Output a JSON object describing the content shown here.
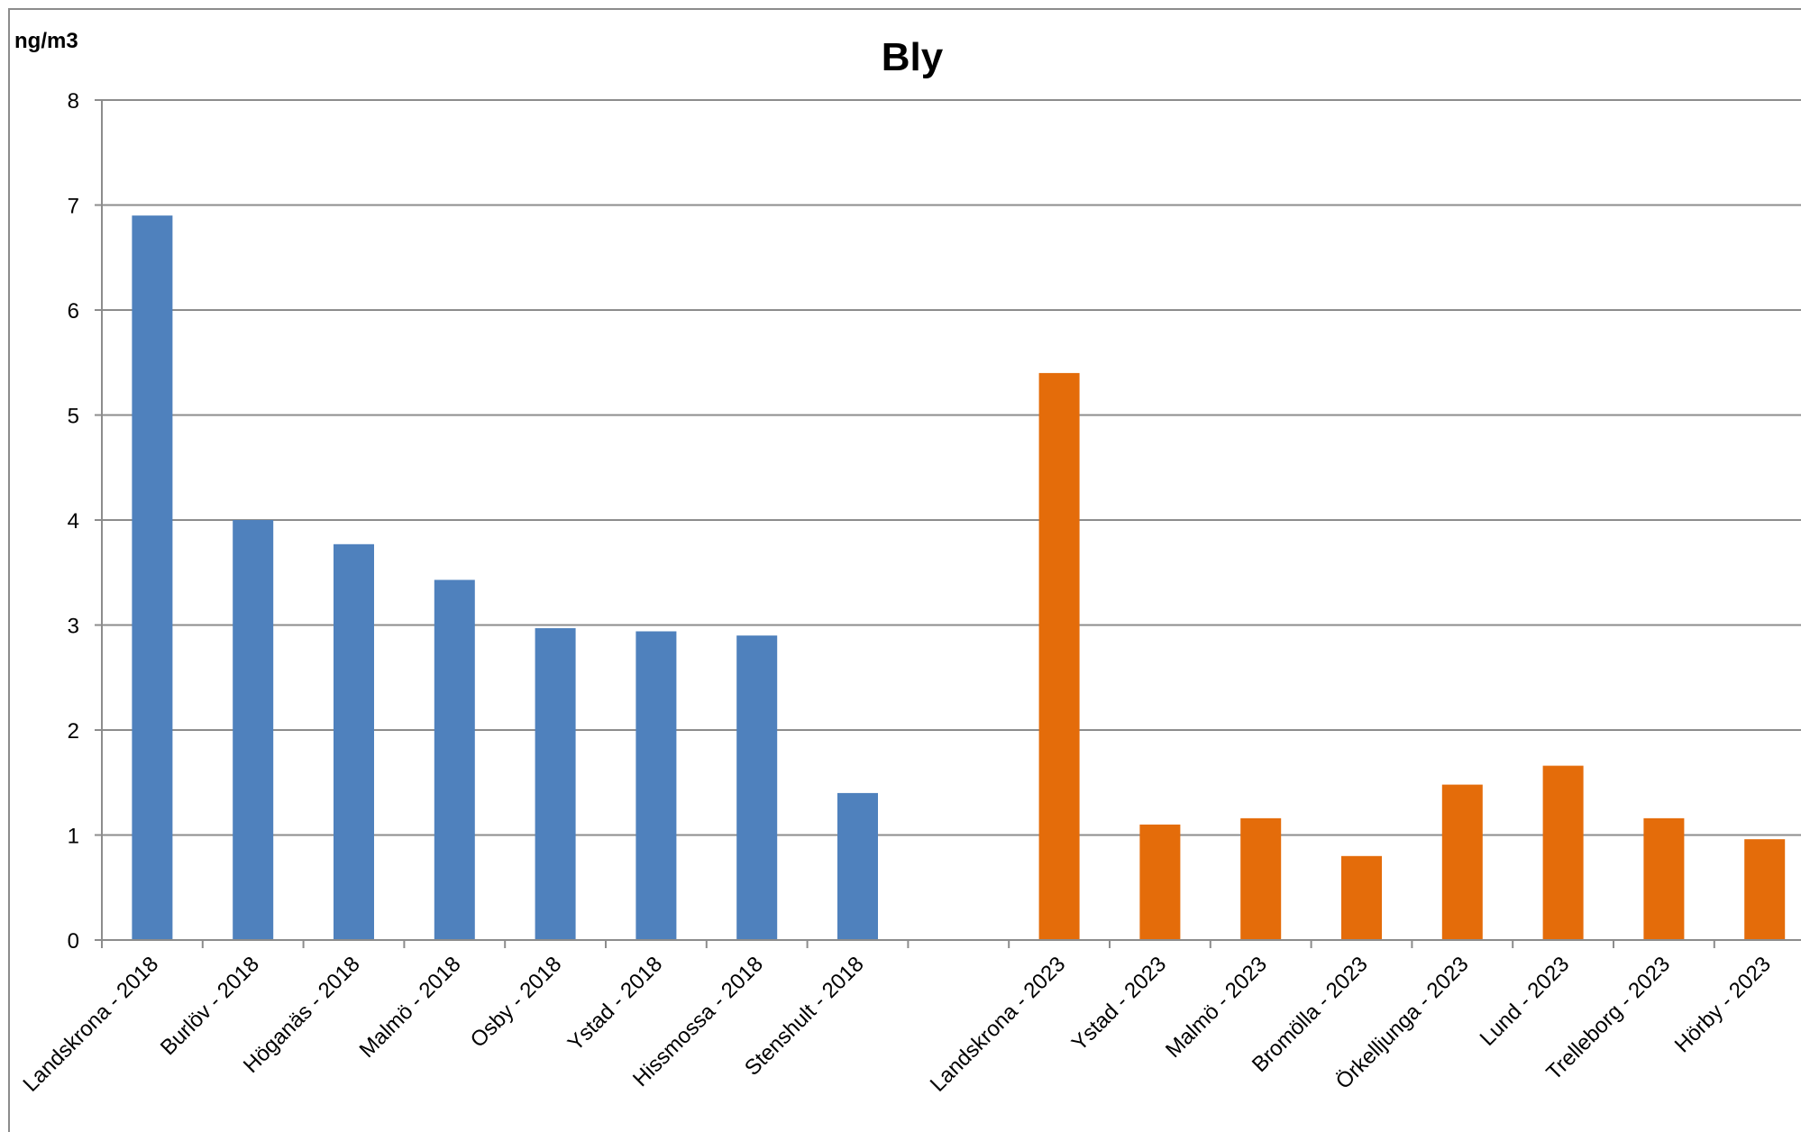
{
  "chart_data": {
    "type": "bar",
    "title": "Bly",
    "ylabel": "ng/m3",
    "xlabel": "",
    "ylim": [
      0,
      8
    ],
    "yticks": [
      0,
      1,
      2,
      3,
      4,
      5,
      6,
      7,
      8
    ],
    "grid": true,
    "legend": "none",
    "categories": [
      "Landskrona - 2018",
      "Burlöv - 2018",
      "Höganäs - 2018",
      "Malmö - 2018",
      "Osby - 2018",
      "Ystad - 2018",
      "Hissmossa - 2018",
      "Stenshult - 2018",
      "",
      "Landskrona - 2023",
      "Ystad - 2023",
      "Malmö - 2023",
      "Bromölla - 2023",
      "Örkelljunga - 2023",
      "Lund - 2023",
      "Trelleborg - 2023",
      "Hörby - 2023"
    ],
    "series": [
      {
        "color": "#4f81bd",
        "values": [
          6.9,
          4.0,
          3.77,
          3.43,
          2.97,
          2.94,
          2.9,
          1.4,
          null,
          null,
          null,
          null,
          null,
          null,
          null,
          null,
          null
        ]
      },
      {
        "color": "#e46c0a",
        "values": [
          null,
          null,
          null,
          null,
          null,
          null,
          null,
          null,
          null,
          5.4,
          1.1,
          1.16,
          0.8,
          1.48,
          1.66,
          1.16,
          0.96
        ]
      }
    ]
  }
}
